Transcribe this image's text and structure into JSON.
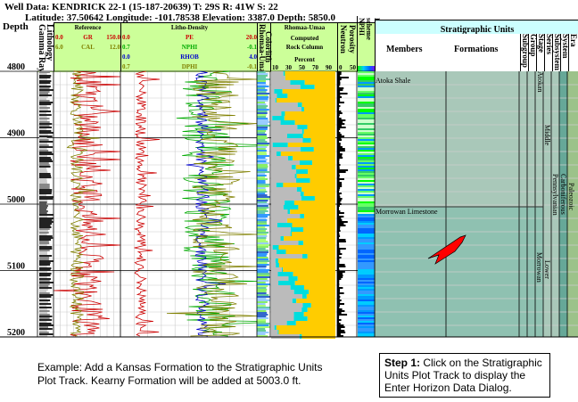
{
  "well": {
    "line1": "Well Data: KENDRICK 22-1 (15-187-20639) T: 29S R: 41W S: 22",
    "line2": "Latitude: 37.50642 Longitude: -101.78538 Elevation: 3387.0 Depth: 5850.0"
  },
  "depth": {
    "title": "Depth",
    "ticks": [
      "4800",
      "4900",
      "5000",
      "5100",
      "5200"
    ]
  },
  "tracks": {
    "lithology": "Lithology",
    "gamma": "Gamma Ray",
    "reference": {
      "title": "Reference",
      "curves": [
        {
          "min": "0.0",
          "name": "GR",
          "max": "150.0",
          "color": "#cc0000"
        },
        {
          "min": "6.0",
          "name": "CAL",
          "max": "12.0",
          "color": "#808000"
        }
      ]
    },
    "litho_density": {
      "title": "Litho-Density",
      "curves": [
        {
          "min": "0.0",
          "name": "PE",
          "max": "20.0",
          "color": "#cc0000"
        },
        {
          "min": "0.7",
          "name": "NPHI",
          "max": "-0.1",
          "color": "#00aa00"
        },
        {
          "min": "0.0",
          "name": "RHOB",
          "max": "4.0",
          "color": "#0000cc"
        },
        {
          "min": "0.7",
          "name": "DPHI",
          "max": "-0.1",
          "color": "#808000"
        }
      ]
    },
    "colorlith": "Colorlith",
    "rhomaa_umaa_v": "Rhomaa-Umaa",
    "rhomaa_umaa": {
      "title": "Rhomaa-Umaa",
      "l1": "Computed",
      "l2": "Rock Column",
      "l3": "Percent",
      "scale": [
        "10",
        "30",
        "50",
        "70",
        "90"
      ]
    },
    "neutron": "Neutron",
    "porosity": "Porosity",
    "porosity_scale": [
      "0",
      "50"
    ],
    "nphi": "NPHI",
    "color_scheme": "Linear color scheme"
  },
  "strat": {
    "title": "Stratigraphic Units",
    "members": "Members",
    "formations": "Formations",
    "ranks": [
      "Subgroup",
      "Group",
      "Stage",
      "Series",
      "Subsystem",
      "System",
      "Era"
    ],
    "units": {
      "atoka_shale": "Atoka Shale",
      "morrow_ls": "Morrowan Limestone",
      "atokan": "Atokan",
      "middle": "Middle",
      "pennsylvanian": "Pennsylvanian",
      "carboniferous": "Carboniferous",
      "paleozoic": "Paleozoic",
      "morrowan": "Morrowan",
      "lower": "Lower"
    },
    "colors": {
      "upper": "#a9c8b9",
      "lower": "#8fc1b1",
      "system": "#66a898",
      "era": "#9cc28a"
    }
  },
  "caption": "Example: Add a Kansas Formation to the Stratigraphic Units Plot Track.  Kearny Formation will be added at 5003.0 ft.",
  "step": {
    "label": "Step 1:",
    "text": " Click on the Stratigraphic Units Plot Track to display the Enter Horizon Data Dialog."
  },
  "pointer": {
    "icon": "red-arrow-icon",
    "color": "#ff0000"
  }
}
